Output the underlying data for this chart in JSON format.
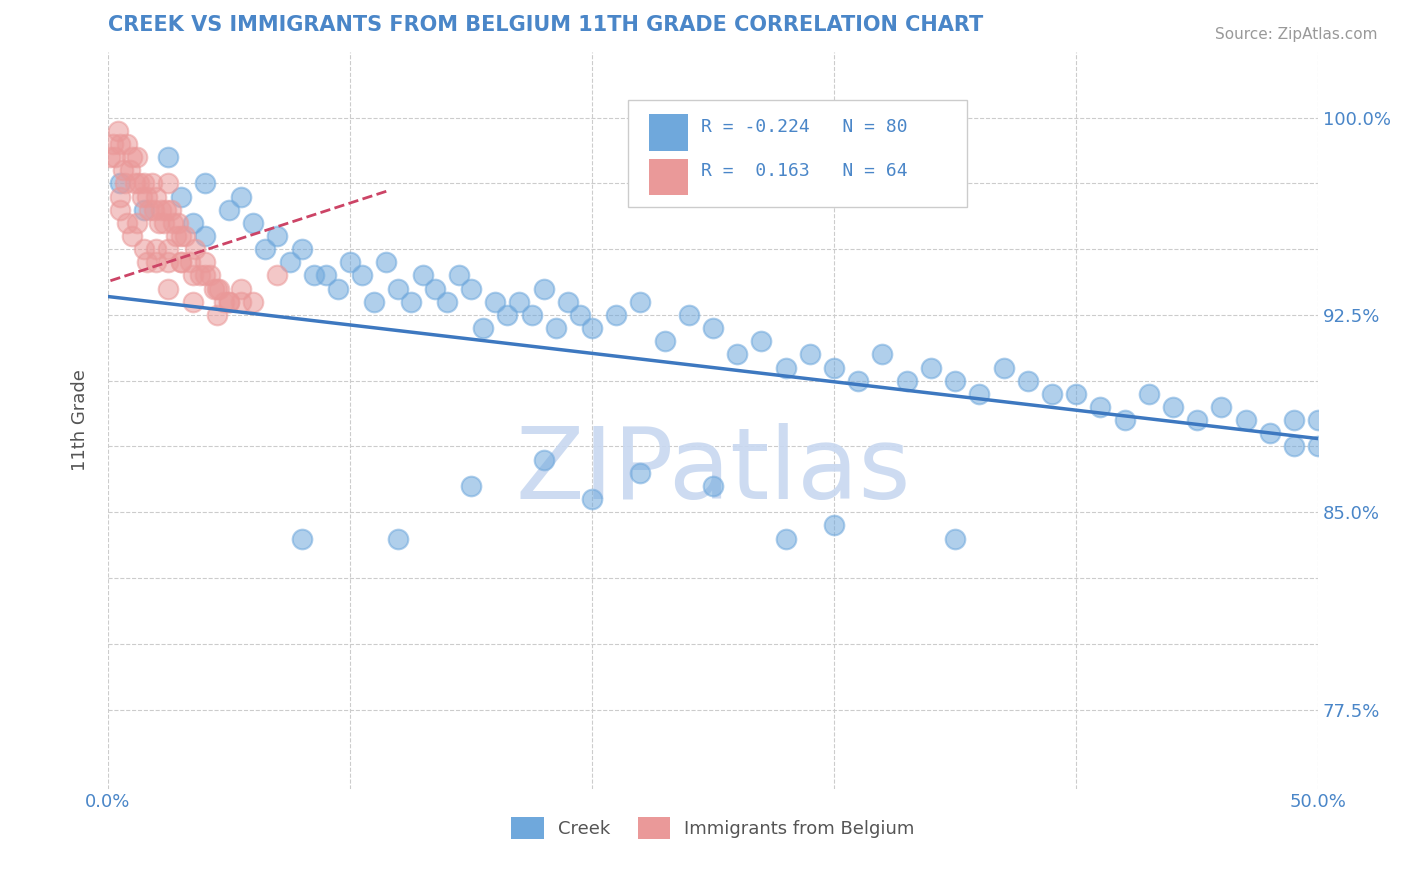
{
  "title": "CREEK VS IMMIGRANTS FROM BELGIUM 11TH GRADE CORRELATION CHART",
  "source_text": "Source: ZipAtlas.com",
  "ylabel": "11th Grade",
  "xmin": 0.0,
  "xmax": 0.5,
  "ymin": 0.745,
  "ymax": 1.025,
  "ytick_positions": [
    0.775,
    0.8,
    0.825,
    0.85,
    0.875,
    0.9,
    0.925,
    0.95,
    0.975,
    1.0
  ],
  "ytick_labels": [
    "77.5%",
    "",
    "",
    "85.0%",
    "",
    "",
    "92.5%",
    "",
    "",
    "100.0%"
  ],
  "xtick_positions": [
    0.0,
    0.1,
    0.2,
    0.3,
    0.4,
    0.5
  ],
  "xtick_labels": [
    "0.0%",
    "",
    "",
    "",
    "",
    "50.0%"
  ],
  "legend_r1": "R = -0.224",
  "legend_n1": "N = 80",
  "legend_r2": "R =  0.163",
  "legend_n2": "N = 64",
  "color_blue": "#6fa8dc",
  "color_pink": "#ea9999",
  "color_blue_line": "#3d78c0",
  "color_pink_line": "#cc4466",
  "title_color": "#4a86c8",
  "watermark_text": "ZIPatlas",
  "watermark_color": "#c8d8f0",
  "blue_scatter_x": [
    0.005,
    0.015,
    0.025,
    0.03,
    0.035,
    0.04,
    0.04,
    0.05,
    0.055,
    0.06,
    0.065,
    0.07,
    0.075,
    0.08,
    0.085,
    0.09,
    0.095,
    0.1,
    0.105,
    0.11,
    0.115,
    0.12,
    0.125,
    0.13,
    0.135,
    0.14,
    0.145,
    0.15,
    0.155,
    0.16,
    0.165,
    0.17,
    0.175,
    0.18,
    0.185,
    0.19,
    0.195,
    0.2,
    0.21,
    0.22,
    0.23,
    0.24,
    0.25,
    0.26,
    0.27,
    0.28,
    0.29,
    0.3,
    0.31,
    0.32,
    0.33,
    0.34,
    0.35,
    0.36,
    0.37,
    0.38,
    0.39,
    0.4,
    0.41,
    0.42,
    0.43,
    0.44,
    0.45,
    0.46,
    0.47,
    0.48,
    0.49,
    0.49,
    0.5,
    0.5,
    0.15,
    0.2,
    0.25,
    0.3,
    0.35,
    0.22,
    0.28,
    0.18,
    0.12,
    0.08
  ],
  "blue_scatter_y": [
    0.975,
    0.965,
    0.985,
    0.97,
    0.96,
    0.975,
    0.955,
    0.965,
    0.97,
    0.96,
    0.95,
    0.955,
    0.945,
    0.95,
    0.94,
    0.94,
    0.935,
    0.945,
    0.94,
    0.93,
    0.945,
    0.935,
    0.93,
    0.94,
    0.935,
    0.93,
    0.94,
    0.935,
    0.92,
    0.93,
    0.925,
    0.93,
    0.925,
    0.935,
    0.92,
    0.93,
    0.925,
    0.92,
    0.925,
    0.93,
    0.915,
    0.925,
    0.92,
    0.91,
    0.915,
    0.905,
    0.91,
    0.905,
    0.9,
    0.91,
    0.9,
    0.905,
    0.9,
    0.895,
    0.905,
    0.9,
    0.895,
    0.895,
    0.89,
    0.885,
    0.895,
    0.89,
    0.885,
    0.89,
    0.885,
    0.88,
    0.885,
    0.875,
    0.885,
    0.875,
    0.86,
    0.855,
    0.86,
    0.845,
    0.84,
    0.865,
    0.84,
    0.87,
    0.84,
    0.84
  ],
  "pink_scatter_x": [
    0.001,
    0.002,
    0.003,
    0.004,
    0.005,
    0.006,
    0.007,
    0.008,
    0.009,
    0.01,
    0.011,
    0.012,
    0.013,
    0.014,
    0.015,
    0.016,
    0.017,
    0.018,
    0.019,
    0.02,
    0.021,
    0.022,
    0.023,
    0.024,
    0.025,
    0.026,
    0.027,
    0.028,
    0.029,
    0.03,
    0.032,
    0.034,
    0.036,
    0.038,
    0.04,
    0.042,
    0.044,
    0.046,
    0.048,
    0.05,
    0.005,
    0.01,
    0.015,
    0.02,
    0.025,
    0.03,
    0.005,
    0.008,
    0.012,
    0.016,
    0.02,
    0.025,
    0.03,
    0.035,
    0.04,
    0.045,
    0.05,
    0.055,
    0.06,
    0.07,
    0.025,
    0.035,
    0.045,
    0.055
  ],
  "pink_scatter_y": [
    0.985,
    0.99,
    0.985,
    0.995,
    0.99,
    0.98,
    0.975,
    0.99,
    0.98,
    0.985,
    0.975,
    0.985,
    0.975,
    0.97,
    0.975,
    0.97,
    0.965,
    0.975,
    0.965,
    0.97,
    0.96,
    0.965,
    0.96,
    0.965,
    0.975,
    0.965,
    0.96,
    0.955,
    0.96,
    0.955,
    0.955,
    0.945,
    0.95,
    0.94,
    0.945,
    0.94,
    0.935,
    0.935,
    0.93,
    0.93,
    0.965,
    0.955,
    0.95,
    0.945,
    0.95,
    0.945,
    0.97,
    0.96,
    0.96,
    0.945,
    0.95,
    0.945,
    0.945,
    0.94,
    0.94,
    0.935,
    0.93,
    0.935,
    0.93,
    0.94,
    0.935,
    0.93,
    0.925,
    0.93
  ],
  "blue_line_x": [
    0.0,
    0.5
  ],
  "blue_line_y": [
    0.932,
    0.878
  ],
  "pink_line_x": [
    0.001,
    0.115
  ],
  "pink_line_y": [
    0.938,
    0.972
  ]
}
